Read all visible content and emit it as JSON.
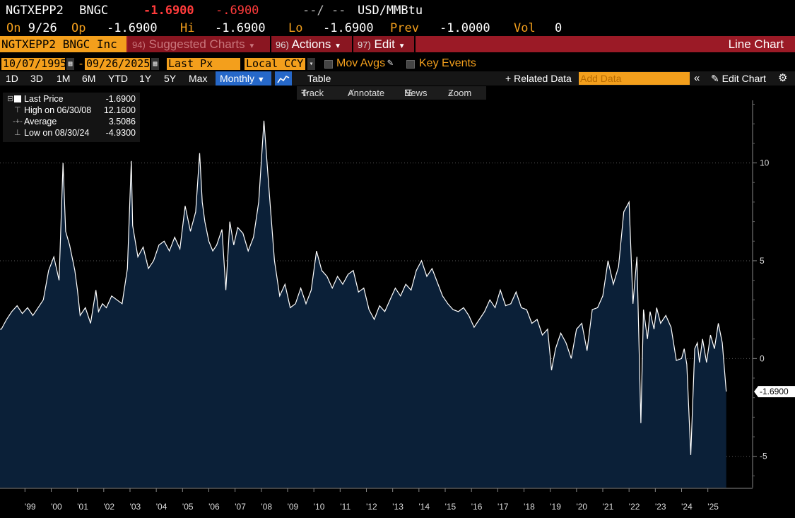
{
  "header": {
    "ticker": "NGTXEPP2",
    "source": "BNGC",
    "last": "-1.6900",
    "change": "-.6900",
    "blank": "--/ --",
    "units": "USD/MMBtu",
    "on_label": "On",
    "on_date": "9/26",
    "op_label": "Op",
    "op": "-1.6900",
    "hi_label": "Hi",
    "hi": "-1.6900",
    "lo_label": "Lo",
    "lo": "-1.6900",
    "prev_label": "Prev",
    "prev": "-1.0000",
    "vol_label": "Vol",
    "vol": "0"
  },
  "toolbar": {
    "security": "NGTXEPP2 BNGC Inc",
    "suggested_num": "94)",
    "suggested": "Suggested Charts",
    "actions_num": "96)",
    "actions": "Actions",
    "edit_num": "97)",
    "edit": "Edit",
    "title": "Line Chart"
  },
  "controls": {
    "start_date": "10/07/1995",
    "end_date": "09/26/2025",
    "field": "Last Px",
    "currency": "Local CCY",
    "mov_avgs": "Mov Avgs",
    "key_events": "Key Events",
    "ranges": [
      "1D",
      "3D",
      "1M",
      "6M",
      "YTD",
      "1Y",
      "5Y",
      "Max"
    ],
    "period": "Monthly",
    "table": "Table",
    "related": "Related Data",
    "add_data_placeholder": "Add Data",
    "edit_chart": "Edit Chart",
    "track": "Track",
    "annotate": "Annotate",
    "news": "News",
    "zoom": "Zoom"
  },
  "legend": {
    "last_label": "Last Price",
    "last_value": "-1.6900",
    "high_label": "High on 06/30/08",
    "high_value": "12.1600",
    "avg_label": "Average",
    "avg_value": "3.5086",
    "low_label": "Low on 08/30/24",
    "low_value": "-4.9300"
  },
  "colors": {
    "background": "#000000",
    "area_fill": "#0b2038",
    "line": "#ffffff",
    "orange": "#f39f1c",
    "red": "#ff3b3b",
    "bar_red": "#9b1a26",
    "grid": "#5a5a5a"
  },
  "chart_data": {
    "type": "area",
    "title": "",
    "xlabel": "",
    "ylabel": "",
    "ylim": [
      -6.6,
      13.2
    ],
    "y_ticks": [
      10,
      5,
      0,
      -5
    ],
    "y_tick_labels": [
      "10",
      "5",
      "0",
      "-5"
    ],
    "x_tick_labels": [
      "'99",
      "'00",
      "'01",
      "'02",
      "'03",
      "'04",
      "'05",
      "'06",
      "'07",
      "'08",
      "'09",
      "'10",
      "'11",
      "'12",
      "'13",
      "'14",
      "'15",
      "'16",
      "'17",
      "'18",
      "'19",
      "'20",
      "'21",
      "'22",
      "'23",
      "'24",
      "'25"
    ],
    "x_tick_years": [
      1999,
      2000,
      2001,
      2002,
      2003,
      2004,
      2005,
      2006,
      2007,
      2008,
      2009,
      2010,
      2011,
      2012,
      2013,
      2014,
      2015,
      2016,
      2017,
      2018,
      2019,
      2020,
      2021,
      2022,
      2023,
      2024,
      2025
    ],
    "last_value_label": "-1.6900",
    "grid": true,
    "x": [
      1998.1,
      1998.3,
      1998.5,
      1998.7,
      1998.9,
      1999.1,
      1999.3,
      1999.5,
      1999.7,
      1999.9,
      2000.1,
      2000.3,
      2000.45,
      2000.55,
      2000.7,
      2000.9,
      2001.0,
      2001.1,
      2001.3,
      2001.5,
      2001.7,
      2001.8,
      2001.95,
      2002.1,
      2002.3,
      2002.5,
      2002.7,
      2002.9,
      2003.05,
      2003.1,
      2003.3,
      2003.5,
      2003.7,
      2003.9,
      2004.1,
      2004.3,
      2004.5,
      2004.7,
      2004.9,
      2005.1,
      2005.3,
      2005.5,
      2005.65,
      2005.75,
      2005.85,
      2006.0,
      2006.15,
      2006.3,
      2006.5,
      2006.65,
      2006.8,
      2006.95,
      2007.1,
      2007.3,
      2007.5,
      2007.7,
      2007.9,
      2008.1,
      2008.3,
      2008.5,
      2008.7,
      2008.9,
      2009.1,
      2009.3,
      2009.5,
      2009.7,
      2009.9,
      2010.1,
      2010.3,
      2010.5,
      2010.7,
      2010.9,
      2011.1,
      2011.3,
      2011.5,
      2011.7,
      2011.9,
      2012.1,
      2012.3,
      2012.5,
      2012.7,
      2012.9,
      2013.1,
      2013.3,
      2013.5,
      2013.7,
      2013.9,
      2014.1,
      2014.3,
      2014.5,
      2014.7,
      2014.9,
      2015.1,
      2015.3,
      2015.5,
      2015.7,
      2015.9,
      2016.1,
      2016.3,
      2016.5,
      2016.7,
      2016.9,
      2017.1,
      2017.3,
      2017.5,
      2017.7,
      2017.9,
      2018.1,
      2018.3,
      2018.5,
      2018.7,
      2018.9,
      2019.05,
      2019.2,
      2019.4,
      2019.6,
      2019.8,
      2020.0,
      2020.2,
      2020.4,
      2020.6,
      2020.8,
      2021.0,
      2021.2,
      2021.4,
      2021.6,
      2021.8,
      2022.0,
      2022.15,
      2022.3,
      2022.45,
      2022.55,
      2022.7,
      2022.8,
      2022.95,
      2023.05,
      2023.2,
      2023.4,
      2023.6,
      2023.8,
      2024.0,
      2024.1,
      2024.2,
      2024.35,
      2024.5,
      2024.6,
      2024.68,
      2024.8,
      2024.95,
      2025.1,
      2025.25,
      2025.4,
      2025.55,
      2025.7
    ],
    "values": [
      1.5,
      2.0,
      2.4,
      2.7,
      2.3,
      2.6,
      2.2,
      2.6,
      3.0,
      4.5,
      5.2,
      4.0,
      10.0,
      6.5,
      5.8,
      4.5,
      3.5,
      2.2,
      2.6,
      1.8,
      3.5,
      2.4,
      2.8,
      2.6,
      3.2,
      3.0,
      2.8,
      4.6,
      10.1,
      6.8,
      5.2,
      5.7,
      4.6,
      5.0,
      5.8,
      6.0,
      5.5,
      6.2,
      5.6,
      7.8,
      6.5,
      7.5,
      10.5,
      8.0,
      7.0,
      6.0,
      5.5,
      5.8,
      6.6,
      3.5,
      7.0,
      5.8,
      6.7,
      6.4,
      5.5,
      6.2,
      8.0,
      12.16,
      8.5,
      5.0,
      3.2,
      3.8,
      2.6,
      2.8,
      3.6,
      2.8,
      3.5,
      5.5,
      4.5,
      4.2,
      3.6,
      4.2,
      3.8,
      4.3,
      4.5,
      3.4,
      3.6,
      2.5,
      2.0,
      2.7,
      2.4,
      3.0,
      3.6,
      3.2,
      3.8,
      3.5,
      4.5,
      5.0,
      4.2,
      4.6,
      3.9,
      3.2,
      2.8,
      2.5,
      2.4,
      2.6,
      2.2,
      1.6,
      2.0,
      2.4,
      3.0,
      2.6,
      3.5,
      2.7,
      2.8,
      3.4,
      2.6,
      2.5,
      1.8,
      2.0,
      1.2,
      1.5,
      -0.6,
      0.5,
      1.3,
      0.8,
      0.0,
      1.5,
      1.8,
      0.4,
      2.5,
      2.6,
      3.2,
      5.0,
      3.8,
      4.7,
      7.5,
      8.0,
      2.8,
      5.2,
      -3.3,
      2.5,
      1.0,
      2.4,
      1.5,
      2.6,
      1.8,
      2.2,
      1.6,
      -0.1,
      0.0,
      0.5,
      -0.3,
      -4.93,
      0.5,
      0.8,
      -0.2,
      1.0,
      -0.2,
      1.2,
      0.5,
      1.8,
      0.8,
      -1.69
    ]
  }
}
